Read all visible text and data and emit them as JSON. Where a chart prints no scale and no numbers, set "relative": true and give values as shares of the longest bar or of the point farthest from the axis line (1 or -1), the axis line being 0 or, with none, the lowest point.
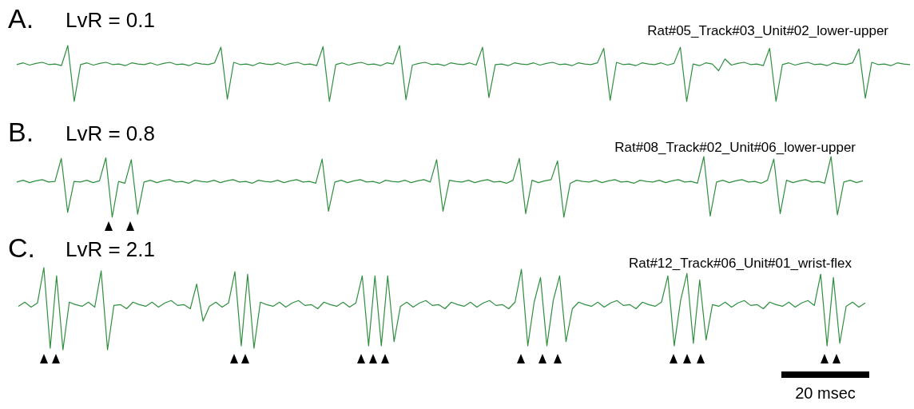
{
  "chart_data": [
    {
      "type": "line",
      "title": "A.",
      "subtitle": "LvR = 0.1",
      "annotations": [
        "Rat#05_Track#03_Unit#02_lower-upper"
      ],
      "relative": true,
      "tick_labels": false,
      "marker": "none",
      "color": "#2f8f3f",
      "categories": [
        null,
        null,
        null,
        null,
        null,
        null,
        null,
        null,
        null,
        null,
        null,
        null,
        null,
        null,
        null,
        null,
        null,
        null,
        null,
        null,
        null,
        null,
        null,
        null,
        null,
        null,
        null,
        null,
        null,
        null,
        null,
        null,
        null,
        null,
        null,
        null,
        null,
        null,
        null,
        null,
        null,
        null,
        null,
        null,
        null,
        null,
        null,
        null,
        null,
        null,
        null,
        null,
        null,
        null,
        null,
        null,
        null,
        null,
        null,
        null,
        null,
        null,
        null,
        null,
        null,
        null,
        null,
        null,
        null,
        null,
        null,
        null,
        null,
        null,
        null,
        null,
        null,
        null,
        null,
        null,
        null,
        null,
        null,
        null,
        null,
        null,
        null,
        null,
        null,
        null,
        null,
        null,
        null,
        null,
        null,
        null,
        null,
        null,
        null,
        null,
        null,
        null,
        null,
        null,
        null,
        null,
        null,
        null,
        null,
        null,
        null,
        null,
        null,
        null,
        null,
        null,
        null,
        null,
        null,
        null,
        null,
        null,
        null,
        null,
        null,
        null,
        null,
        null,
        null,
        null,
        null,
        null,
        null,
        null,
        null,
        null,
        null,
        null,
        null,
        null,
        null
      ],
      "values": [
        0.66,
        0.69,
        0.65,
        0.68,
        0.7,
        0.66,
        0.67,
        0.64,
        1,
        0,
        0.66,
        0.69,
        0.65,
        0.68,
        0.7,
        0.66,
        0.67,
        0.64,
        0.69,
        0.67,
        0.66,
        0.69,
        0.65,
        0.68,
        0.7,
        0.66,
        0.67,
        0.64,
        0.69,
        0.67,
        0.66,
        0.69,
        0.97,
        0.04,
        0.7,
        0.66,
        0.67,
        0.64,
        0.69,
        0.67,
        0.66,
        0.69,
        0.65,
        0.68,
        0.7,
        0.66,
        0.67,
        0.64,
        0.98,
        0,
        0.66,
        0.69,
        0.65,
        0.68,
        0.7,
        0.66,
        0.67,
        0.64,
        0.69,
        0.67,
        1,
        0.03,
        0.65,
        0.68,
        0.7,
        0.66,
        0.67,
        0.64,
        0.69,
        0.67,
        0.66,
        0.69,
        0.65,
        0.97,
        0.07,
        0.66,
        0.67,
        0.64,
        0.69,
        0.67,
        0.66,
        0.69,
        0.65,
        0.68,
        0.7,
        0.66,
        0.67,
        0.64,
        0.69,
        0.67,
        0.66,
        0.69,
        0.95,
        0.02,
        0.7,
        0.66,
        0.67,
        0.64,
        0.69,
        0.67,
        0.66,
        0.69,
        0.65,
        0.68,
        0.97,
        0,
        0.67,
        0.64,
        0.69,
        0.67,
        0.55,
        0.76,
        0.65,
        0.68,
        0.7,
        0.66,
        0.67,
        0.64,
        0.95,
        0,
        0.66,
        0.69,
        0.65,
        0.68,
        0.7,
        0.66,
        0.67,
        0.64,
        0.69,
        0.67,
        0.66,
        0.69,
        0.94,
        0.06,
        0.7,
        0.66,
        0.67,
        0.64,
        0.69,
        0.67,
        0.66
      ]
    },
    {
      "type": "line",
      "title": "B.",
      "subtitle": "LvR = 0.8",
      "annotations": [
        "Rat#08_Track#02_Unit#06_lower-upper"
      ],
      "relative": true,
      "tick_labels": false,
      "marker": "none",
      "color": "#2f8f3f",
      "categories": [
        null,
        null,
        null,
        null,
        null,
        null,
        null,
        null,
        null,
        null,
        null,
        null,
        null,
        null,
        null,
        null,
        null,
        null,
        null,
        null,
        null,
        null,
        null,
        null,
        null,
        null,
        null,
        null,
        null,
        null,
        null,
        null,
        null,
        null,
        null,
        null,
        null,
        null,
        null,
        null,
        null,
        null,
        null,
        null,
        null,
        null,
        null,
        null,
        null,
        null,
        null,
        null,
        null,
        null,
        null,
        null,
        null,
        null,
        null,
        null,
        null,
        null,
        null,
        null,
        null,
        null,
        null,
        null,
        null,
        null,
        null,
        null,
        null,
        null,
        null,
        null,
        null,
        null,
        null,
        null,
        null,
        null,
        null,
        null,
        null,
        null,
        null,
        null,
        null,
        null,
        null,
        null,
        null,
        null,
        null,
        null,
        null,
        null,
        null,
        null,
        null,
        null,
        null,
        null,
        null,
        null,
        null,
        null,
        null,
        null,
        null,
        null,
        null,
        null,
        null,
        null,
        null,
        null,
        null,
        null,
        null,
        null,
        null,
        null,
        null,
        null,
        null,
        null,
        null,
        null,
        null,
        null,
        null,
        null
      ],
      "values": [
        0.58,
        0.61,
        0.57,
        0.6,
        0.62,
        0.58,
        0.59,
        0.97,
        0.08,
        0.59,
        0.58,
        0.61,
        0.57,
        0.6,
        0.98,
        0,
        0.59,
        0.56,
        0.95,
        0.05,
        0.58,
        0.61,
        0.57,
        0.6,
        0.62,
        0.58,
        0.59,
        0.56,
        0.61,
        0.59,
        0.58,
        0.61,
        0.57,
        0.6,
        0.62,
        0.58,
        0.59,
        0.56,
        0.61,
        0.59,
        0.58,
        0.61,
        0.57,
        0.6,
        0.62,
        0.58,
        0.59,
        0.56,
        0.96,
        0.1,
        0.58,
        0.61,
        0.57,
        0.6,
        0.62,
        0.58,
        0.59,
        0.56,
        0.61,
        0.59,
        0.58,
        0.61,
        0.57,
        0.6,
        0.62,
        0.58,
        0.95,
        0.1,
        0.61,
        0.59,
        0.58,
        0.61,
        0.57,
        0.6,
        0.62,
        0.58,
        0.59,
        0.56,
        0.61,
        0.97,
        0.06,
        0.61,
        0.57,
        0.6,
        0.62,
        0.93,
        0,
        0.56,
        0.61,
        0.59,
        0.58,
        0.61,
        0.57,
        0.6,
        0.62,
        0.58,
        0.59,
        0.56,
        0.61,
        0.59,
        0.58,
        0.61,
        0.57,
        0.6,
        0.62,
        0.58,
        0.59,
        0.56,
        1,
        0.02,
        0.58,
        0.61,
        0.57,
        0.6,
        0.62,
        0.58,
        0.59,
        0.56,
        0.61,
        0.96,
        0.06,
        0.61,
        0.57,
        0.6,
        0.62,
        0.58,
        0.59,
        0.56,
        1,
        0.04,
        0.58,
        0.61,
        0.57,
        0.6
      ]
    },
    {
      "type": "line",
      "title": "C.",
      "subtitle": "LvR = 2.1",
      "annotations": [
        "Rat#12_Track#06_Unit#01_wrist-flex",
        "20 msec"
      ],
      "relative": true,
      "tick_labels": false,
      "marker": "none",
      "color": "#2f8f3f",
      "categories": [
        null,
        null,
        null,
        null,
        null,
        null,
        null,
        null,
        null,
        null,
        null,
        null,
        null,
        null,
        null,
        null,
        null,
        null,
        null,
        null,
        null,
        null,
        null,
        null,
        null,
        null,
        null,
        null,
        null,
        null,
        null,
        null,
        null,
        null,
        null,
        null,
        null,
        null,
        null,
        null,
        null,
        null,
        null,
        null,
        null,
        null,
        null,
        null,
        null,
        null,
        null,
        null,
        null,
        null,
        null,
        null,
        null,
        null,
        null,
        null,
        null,
        null,
        null,
        null,
        null,
        null,
        null,
        null,
        null,
        null,
        null,
        null,
        null,
        null,
        null,
        null,
        null,
        null,
        null,
        null,
        null,
        null,
        null,
        null,
        null,
        null,
        null,
        null,
        null,
        null,
        null,
        null,
        null,
        null,
        null,
        null,
        null,
        null,
        null,
        null,
        null,
        null,
        null,
        null,
        null,
        null,
        null,
        null,
        null,
        null,
        null,
        null,
        null,
        null,
        null,
        null,
        null,
        null,
        null,
        null,
        null,
        null,
        null,
        null,
        null,
        null,
        null,
        null,
        null,
        null,
        null,
        null,
        null,
        null
      ],
      "values": [
        0.53,
        0.58,
        0.52,
        0.57,
        1,
        0.02,
        0.9,
        0,
        0.58,
        0.55,
        0.53,
        0.58,
        0.52,
        0.96,
        0,
        0.54,
        0.55,
        0.5,
        0.58,
        0.55,
        0.53,
        0.58,
        0.52,
        0.57,
        0.6,
        0.54,
        0.55,
        0.5,
        0.8,
        0.35,
        0.53,
        0.58,
        0.52,
        0.57,
        0.95,
        0.05,
        0.92,
        0.02,
        0.58,
        0.55,
        0.53,
        0.58,
        0.52,
        0.57,
        0.6,
        0.54,
        0.55,
        0.5,
        0.58,
        0.55,
        0.53,
        0.58,
        0.52,
        0.57,
        0.9,
        0.05,
        0.9,
        0.05,
        0.9,
        0.1,
        0.53,
        0.58,
        0.52,
        0.57,
        0.6,
        0.54,
        0.55,
        0.5,
        0.58,
        0.55,
        0.53,
        0.58,
        0.52,
        0.57,
        0.6,
        0.54,
        0.55,
        0.5,
        0.58,
        0.98,
        0.05,
        0.58,
        0.88,
        0.05,
        0.6,
        0.9,
        0.1,
        0.5,
        0.58,
        0.55,
        0.53,
        0.58,
        0.52,
        0.57,
        0.6,
        0.54,
        0.55,
        0.5,
        0.58,
        0.55,
        0.53,
        0.58,
        0.9,
        0.05,
        0.6,
        0.93,
        0.08,
        0.85,
        0.12,
        0.55,
        0.53,
        0.58,
        0.52,
        0.57,
        0.6,
        0.54,
        0.55,
        0.5,
        0.58,
        0.55,
        0.53,
        0.58,
        0.52,
        0.57,
        0.6,
        0.54,
        0.92,
        0.05,
        0.88,
        0.08,
        0.53,
        0.58,
        0.52,
        0.57
      ]
    }
  ]
}
